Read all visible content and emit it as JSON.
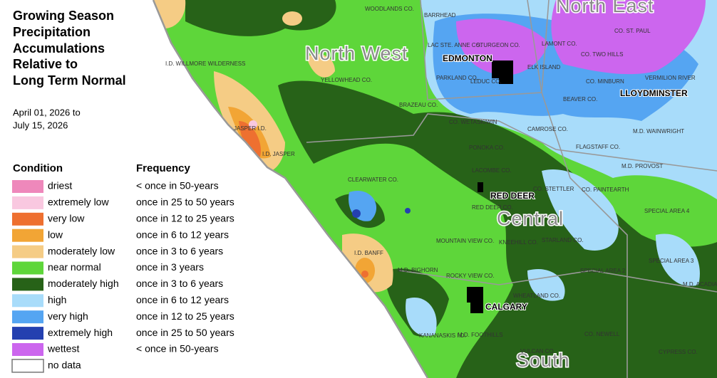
{
  "title_lines": [
    "Growing Season",
    "Precipitation",
    "Accumulations",
    "Relative to",
    "Long Term Normal"
  ],
  "date_lines": [
    "April 01, 2026 to",
    "July 15, 2026"
  ],
  "legend": {
    "headers": [
      "Condition",
      "Frequency"
    ],
    "items": [
      {
        "label": "driest",
        "frequency": "< once in 50-years",
        "color": "#ee88bb"
      },
      {
        "label": "extremely low",
        "frequency": "once in 25 to 50 years",
        "color": "#f9c8e0"
      },
      {
        "label": "very low",
        "frequency": "once in 12 to 25 years",
        "color": "#ee7030"
      },
      {
        "label": "low",
        "frequency": "once in 6 to 12 years",
        "color": "#f2a535"
      },
      {
        "label": "moderately low",
        "frequency": "once in 3 to 6 years",
        "color": "#f5cc85"
      },
      {
        "label": "near normal",
        "frequency": "once in 3 years",
        "color": "#5ed63a"
      },
      {
        "label": "moderately high",
        "frequency": "once in 3 to 6 years",
        "color": "#276218"
      },
      {
        "label": "high",
        "frequency": "once in 6 to 12 years",
        "color": "#a8dcfa"
      },
      {
        "label": "very high",
        "frequency": "once in 12 to 25 years",
        "color": "#55a5f2"
      },
      {
        "label": "extremely high",
        "frequency": "once in 25 to 50 years",
        "color": "#2440b0"
      },
      {
        "label": "wettest",
        "frequency": "< once in 50-years",
        "color": "#cc66ee"
      },
      {
        "label": "no data",
        "color": "#ffffff"
      }
    ]
  },
  "regions": [
    "North West",
    "North East",
    "Central",
    "South"
  ],
  "cities": [
    "EDMONTON",
    "LLOYDMINSTER",
    "RED DEER",
    "CALGARY"
  ],
  "places": [
    "WOODLANDS CO.",
    "BARRHEAD",
    "LAC STE. ANNE CO.",
    "STURGEON CO.",
    "LAMONT CO.",
    "CO. ST. PAUL",
    "CO. TWO HILLS",
    "ELK ISLAND",
    "PARKLAND CO.",
    "LEDUC CO.",
    "CO. MINBURN",
    "VERMILION RIVER",
    "BEAVER CO.",
    "I.D. WILLMORE WILDERNESS",
    "YELLOWHEAD CO.",
    "BRAZEAU CO.",
    "CO. WETASKIWIN",
    "CAMROSE CO.",
    "M.D. WAINWRIGHT",
    "JASPER I.D.",
    "I.D. JASPER",
    "FLAGSTAFF CO.",
    "PONOKA CO.",
    "M.D. PROVOST",
    "CLEARWATER CO.",
    "LACOMBE CO.",
    "CO. STETTLER",
    "CO. PAINTEARTH",
    "RED DEER CO.",
    "SPECIAL AREA 4",
    "MOUNTAIN VIEW CO.",
    "KNEEHILL CO.",
    "STARLAND CO.",
    "I.D. BANFF",
    "M.D. BIGHORN",
    "ROCKY VIEW CO.",
    "SPECIAL AREA 2",
    "SPECIAL AREA 3",
    "M.D. ACADIA",
    "WHEATLAND CO.",
    "M.D. FOOTHILLS",
    "CO. NEWELL",
    "KANANASKIS I.D.",
    "VULCAN CO.",
    "CYPRESS CO."
  ]
}
